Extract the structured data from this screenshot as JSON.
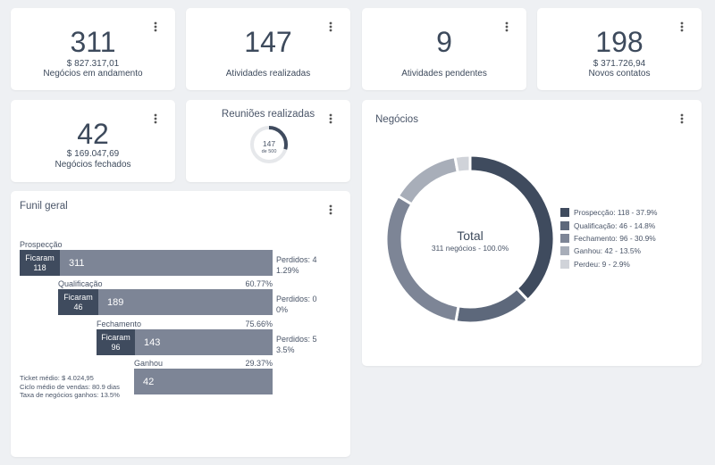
{
  "stats": [
    {
      "value": "311",
      "sub": "$ 827.317,01",
      "label": "Negócios em andamento"
    },
    {
      "value": "147",
      "sub": "",
      "label": "Atividades realizadas"
    },
    {
      "value": "9",
      "sub": "",
      "label": "Atividades pendentes"
    },
    {
      "value": "198",
      "sub": "$ 371.726,94",
      "label": "Novos contatos"
    },
    {
      "value": "42",
      "sub": "$ 169.047,69",
      "label": "Negócios fechados"
    }
  ],
  "meetings": {
    "title": "Reuniões realizadas",
    "value": "147",
    "of_label": "de 500",
    "progress": 0.294
  },
  "funnel": {
    "title": "Funil geral",
    "stay_word": "Ficaram",
    "stages": [
      {
        "name": "Prospecção",
        "pct": "",
        "stay": "118",
        "total": "311",
        "lost": "Perdidos: 4",
        "lost_pct": "1.29%"
      },
      {
        "name": "Qualificação",
        "pct": "60.77%",
        "stay": "46",
        "total": "189",
        "lost": "Perdidos: 0",
        "lost_pct": "0%"
      },
      {
        "name": "Fechamento",
        "pct": "75.66%",
        "stay": "96",
        "total": "143",
        "lost": "Perdidos: 5",
        "lost_pct": "3.5%"
      },
      {
        "name": "Ganhou",
        "pct": "29.37%",
        "stay": "",
        "total": "42",
        "lost": "",
        "lost_pct": ""
      }
    ],
    "footer": {
      "ticket": "Ticket médio: $ 4.024,95",
      "cycle": "Ciclo médio de vendas: 80.9 dias",
      "rate": "Taxa de negócios ganhos: 13.5%"
    }
  },
  "deals": {
    "title": "Negócios",
    "center_title": "Total",
    "center_sub": "311 negócios - 100.0%",
    "segments": [
      {
        "label": "Prospecção: 118 - 37.9%",
        "value": 118,
        "color": "#3f4b5e"
      },
      {
        "label": "Qualificação: 46 - 14.8%",
        "value": 46,
        "color": "#5d687b"
      },
      {
        "label": "Fechamento: 96 - 30.9%",
        "value": 96,
        "color": "#7d8596"
      },
      {
        "label": "Ganhou: 42 - 13.5%",
        "value": 42,
        "color": "#a8aeb9"
      },
      {
        "label": "Perdeu: 9 - 2.9%",
        "value": 9,
        "color": "#d0d3d9"
      }
    ]
  },
  "icons": {
    "menu": "kebab-menu-icon"
  }
}
